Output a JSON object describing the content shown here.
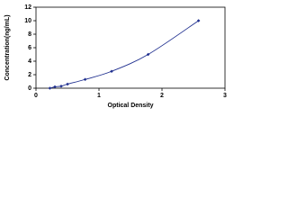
{
  "chart_data": {
    "type": "scatter",
    "fit_line": true,
    "x_label": "Optical Density",
    "y_label": "Concentration(ng/mL)",
    "x": [
      0.22,
      0.3,
      0.4,
      0.5,
      0.78,
      1.2,
      1.78,
      2.58
    ],
    "series": [
      {
        "color": "#1f2f8f",
        "values": [
          0,
          0.2,
          0.3,
          0.6,
          1.3,
          2.5,
          5,
          10
        ]
      }
    ],
    "xlim": [
      0,
      3
    ],
    "xticks": [
      0,
      1,
      2,
      3
    ],
    "ylim": [
      0,
      12
    ],
    "yticks": [
      0,
      2,
      4,
      6,
      8,
      10,
      12
    ]
  }
}
